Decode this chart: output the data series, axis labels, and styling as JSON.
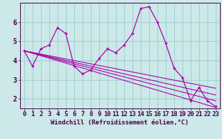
{
  "xlabel": "Windchill (Refroidissement éolien,°C)",
  "background_color": "#cce8e8",
  "grid_color": "#99cccc",
  "line_color": "#aa00aa",
  "xlim": [
    -0.5,
    23.5
  ],
  "ylim": [
    1.5,
    7.0
  ],
  "yticks": [
    2,
    3,
    4,
    5,
    6
  ],
  "xticks": [
    0,
    1,
    2,
    3,
    4,
    5,
    6,
    7,
    8,
    9,
    10,
    11,
    12,
    13,
    14,
    15,
    16,
    17,
    18,
    19,
    20,
    21,
    22,
    23
  ],
  "series1_x": [
    0,
    1,
    2,
    3,
    4,
    5,
    6,
    7,
    8,
    9,
    10,
    11,
    12,
    13,
    14,
    15,
    16,
    17,
    18,
    19,
    20,
    21,
    22,
    23
  ],
  "series1_y": [
    4.5,
    3.7,
    4.6,
    4.8,
    5.7,
    5.4,
    3.7,
    3.3,
    3.5,
    4.1,
    4.6,
    4.4,
    4.8,
    5.4,
    6.7,
    6.8,
    6.0,
    4.9,
    3.6,
    3.1,
    1.9,
    2.6,
    1.9,
    1.6
  ],
  "line1_x": [
    0,
    23
  ],
  "line1_y": [
    4.5,
    1.55
  ],
  "line2_x": [
    0,
    23
  ],
  "line2_y": [
    4.5,
    1.9
  ],
  "line3_x": [
    0,
    23
  ],
  "line3_y": [
    4.5,
    2.2
  ],
  "line4_x": [
    0,
    23
  ],
  "line4_y": [
    4.5,
    2.55
  ],
  "font_size": 6.5
}
